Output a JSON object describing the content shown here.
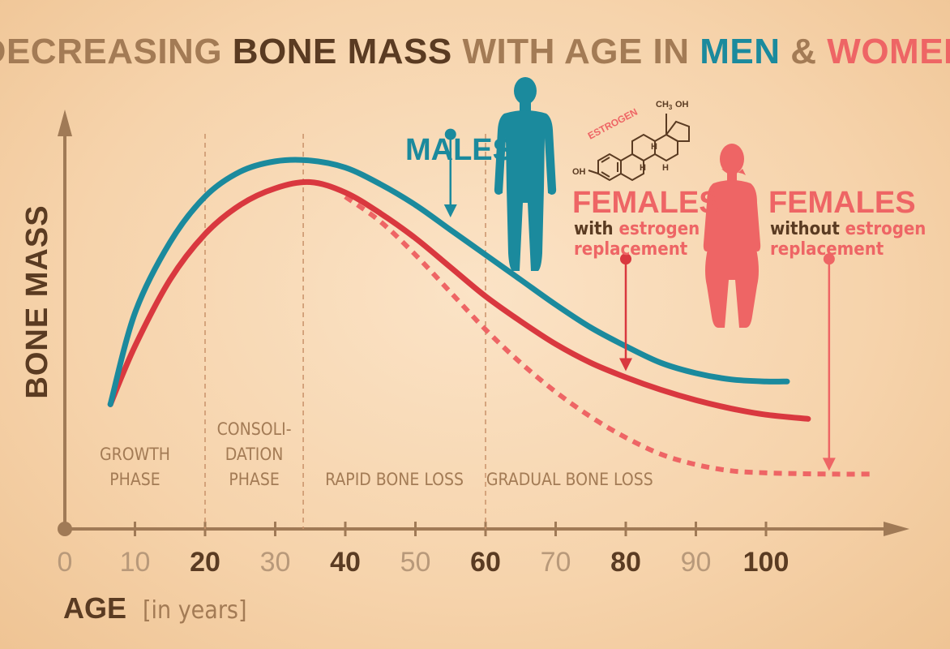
{
  "title": {
    "part1": "DECREASING ",
    "part2": "BONE MASS",
    "part3": " WITH AGE IN ",
    "part4": "MEN",
    "part5": " & ",
    "part6": "WOMEN"
  },
  "colors": {
    "men": "#1b8a9d",
    "women_with": "#d9383f",
    "women_without": "#ee6565",
    "axis": "#a07a56",
    "dark_text": "#5a3b22"
  },
  "labels": {
    "males": "MALES",
    "females_with_title": "FEMALES",
    "females_with_line1a": "with ",
    "females_with_line1b": "estrogen",
    "females_with_line2": "replacement",
    "females_without_title": "FEMALES",
    "females_without_line1a": "without ",
    "females_without_line1b": "estrogen",
    "females_without_line2": "replacement",
    "estrogen": "ESTROGEN",
    "chem_ch3oh": "CH",
    "chem_ch3sub": "3",
    "chem_oh_top": "OH",
    "chem_oh_left": "OH",
    "chem_h": "H"
  },
  "chart_data": {
    "type": "line",
    "ylabel": "BONE MASS",
    "xlabel": "AGE",
    "xunit": "[in years]",
    "xlim": [
      0,
      120
    ],
    "ylim": [
      0,
      100
    ],
    "x_ticks": [
      {
        "value": 0,
        "label": "0",
        "bold": false
      },
      {
        "value": 10,
        "label": "10",
        "bold": false
      },
      {
        "value": 20,
        "label": "20",
        "bold": true
      },
      {
        "value": 30,
        "label": "30",
        "bold": false
      },
      {
        "value": 40,
        "label": "40",
        "bold": true
      },
      {
        "value": 50,
        "label": "50",
        "bold": false
      },
      {
        "value": 60,
        "label": "60",
        "bold": true
      },
      {
        "value": 70,
        "label": "70",
        "bold": false
      },
      {
        "value": 80,
        "label": "80",
        "bold": true
      },
      {
        "value": 90,
        "label": "90",
        "bold": false
      },
      {
        "value": 100,
        "label": "100",
        "bold": true
      }
    ],
    "phase_dividers": [
      20,
      34,
      60
    ],
    "phases": [
      {
        "lines": [
          "GROWTH",
          "PHASE"
        ],
        "center": 10
      },
      {
        "lines": [
          "CONSOLI-",
          "DATION",
          "PHASE"
        ],
        "center": 27
      },
      {
        "lines": [
          "RAPID BONE LOSS"
        ],
        "center": 47
      },
      {
        "lines": [
          "GRADUAL BONE LOSS"
        ],
        "center": 72
      }
    ],
    "series": [
      {
        "name": "MALES",
        "style": "solid",
        "x": [
          6.5,
          10,
          15,
          20,
          25,
          30,
          35,
          40,
          45,
          50,
          55,
          60,
          65,
          70,
          75,
          80,
          85,
          90,
          95,
          100,
          103
        ],
        "y": [
          30,
          52,
          69,
          80,
          86,
          88.5,
          88.7,
          87,
          83,
          78,
          72,
          66,
          60,
          54,
          48.5,
          44,
          40,
          37.5,
          36,
          35.5,
          35.5
        ]
      },
      {
        "name": "FEMALES with estrogen replacement",
        "style": "solid",
        "x": [
          6.5,
          10,
          15,
          20,
          25,
          30,
          35,
          40,
          45,
          50,
          55,
          60,
          65,
          70,
          75,
          80,
          85,
          90,
          95,
          100,
          106
        ],
        "y": [
          30,
          44,
          60,
          71,
          78,
          82,
          83.5,
          81,
          76,
          70,
          63,
          56,
          50,
          44.5,
          40,
          36.5,
          33.5,
          31,
          29,
          27.5,
          26.5
        ]
      },
      {
        "name": "FEMALES without estrogen replacement",
        "style": "dashed",
        "x": [
          40,
          45,
          50,
          55,
          60,
          65,
          70,
          75,
          80,
          85,
          90,
          95,
          100,
          105,
          110,
          115
        ],
        "y": [
          80,
          74,
          66,
          57,
          48,
          40,
          33,
          27,
          22,
          18,
          15.5,
          14,
          13.5,
          13.3,
          13.2,
          13.2
        ]
      }
    ],
    "markers": [
      {
        "series": "MALES",
        "x": 55,
        "y_top": 95,
        "y_bottom": 75
      },
      {
        "series": "FEMALES with estrogen replacement",
        "x": 80,
        "y_top": 65,
        "y_bottom": 38
      },
      {
        "series": "FEMALES without estrogen replacement",
        "x": 109,
        "y_top": 65,
        "y_bottom": 14
      }
    ],
    "grid": false,
    "legend": "none"
  }
}
